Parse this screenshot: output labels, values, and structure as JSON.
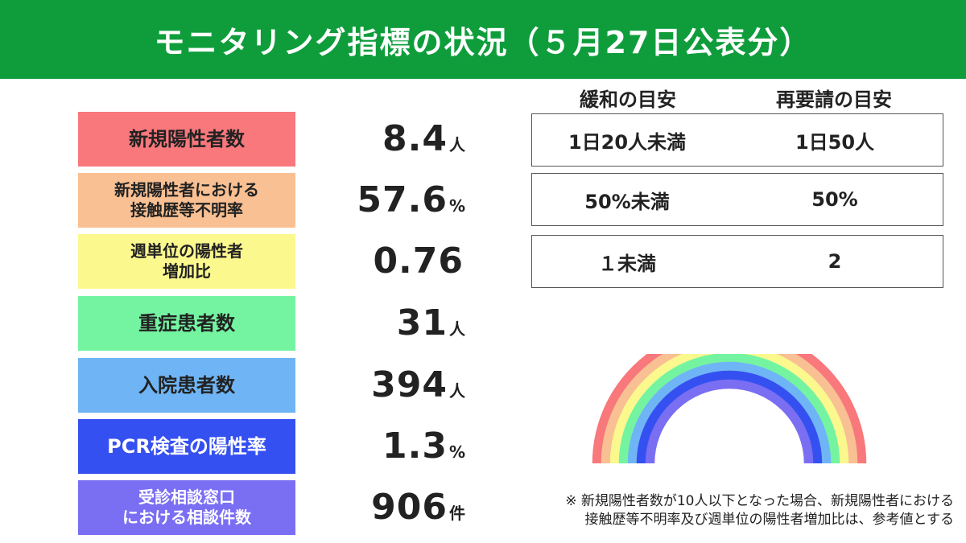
{
  "header": {
    "title": "モニタリング指標の状況（５月27日公表分）"
  },
  "columns": {
    "relax": "緩和の目安",
    "request": "再要請の目安"
  },
  "indicators": [
    {
      "label_lines": [
        "新規陽性者数"
      ],
      "value": "8.4",
      "unit": "人",
      "color": "#f8787c"
    },
    {
      "label_lines": [
        "新規陽性者における",
        "接触歴等不明率"
      ],
      "value": "57.6",
      "unit": "%",
      "color": "#f9c093"
    },
    {
      "label_lines": [
        "週単位の陽性者",
        "増加比"
      ],
      "value": "0.76",
      "unit": "",
      "color": "#fbf88e"
    },
    {
      "label_lines": [
        "重症患者数"
      ],
      "value": "31",
      "unit": "人",
      "color": "#74f4a1"
    },
    {
      "label_lines": [
        "入院患者数"
      ],
      "value": "394",
      "unit": "人",
      "color": "#6fb5f5"
    },
    {
      "label_lines": [
        "PCR検査の陽性率"
      ],
      "value": "1.3",
      "unit": "%",
      "color": "#3550f0"
    },
    {
      "label_lines": [
        "受診相談窓口",
        "における相談件数"
      ],
      "value": "906",
      "unit": "件",
      "color": "#7a6ef3"
    }
  ],
  "criteria": [
    {
      "relax": "1日20人未満",
      "request": "1日50人"
    },
    {
      "relax": "50%未満",
      "request": "50%"
    },
    {
      "relax": "１未満",
      "request": "2"
    }
  ],
  "rainbow": {
    "colors": [
      "#f8787c",
      "#f9c093",
      "#fbf88e",
      "#74f4a1",
      "#6fb5f5",
      "#3550f0",
      "#7a6ef3"
    ]
  },
  "note": {
    "line1": "※ 新規陽性者数が10人以下となった場合、新規陽性者における",
    "line2": "接触歴等不明率及び週単位の陽性者増加比は、参考値とする"
  }
}
